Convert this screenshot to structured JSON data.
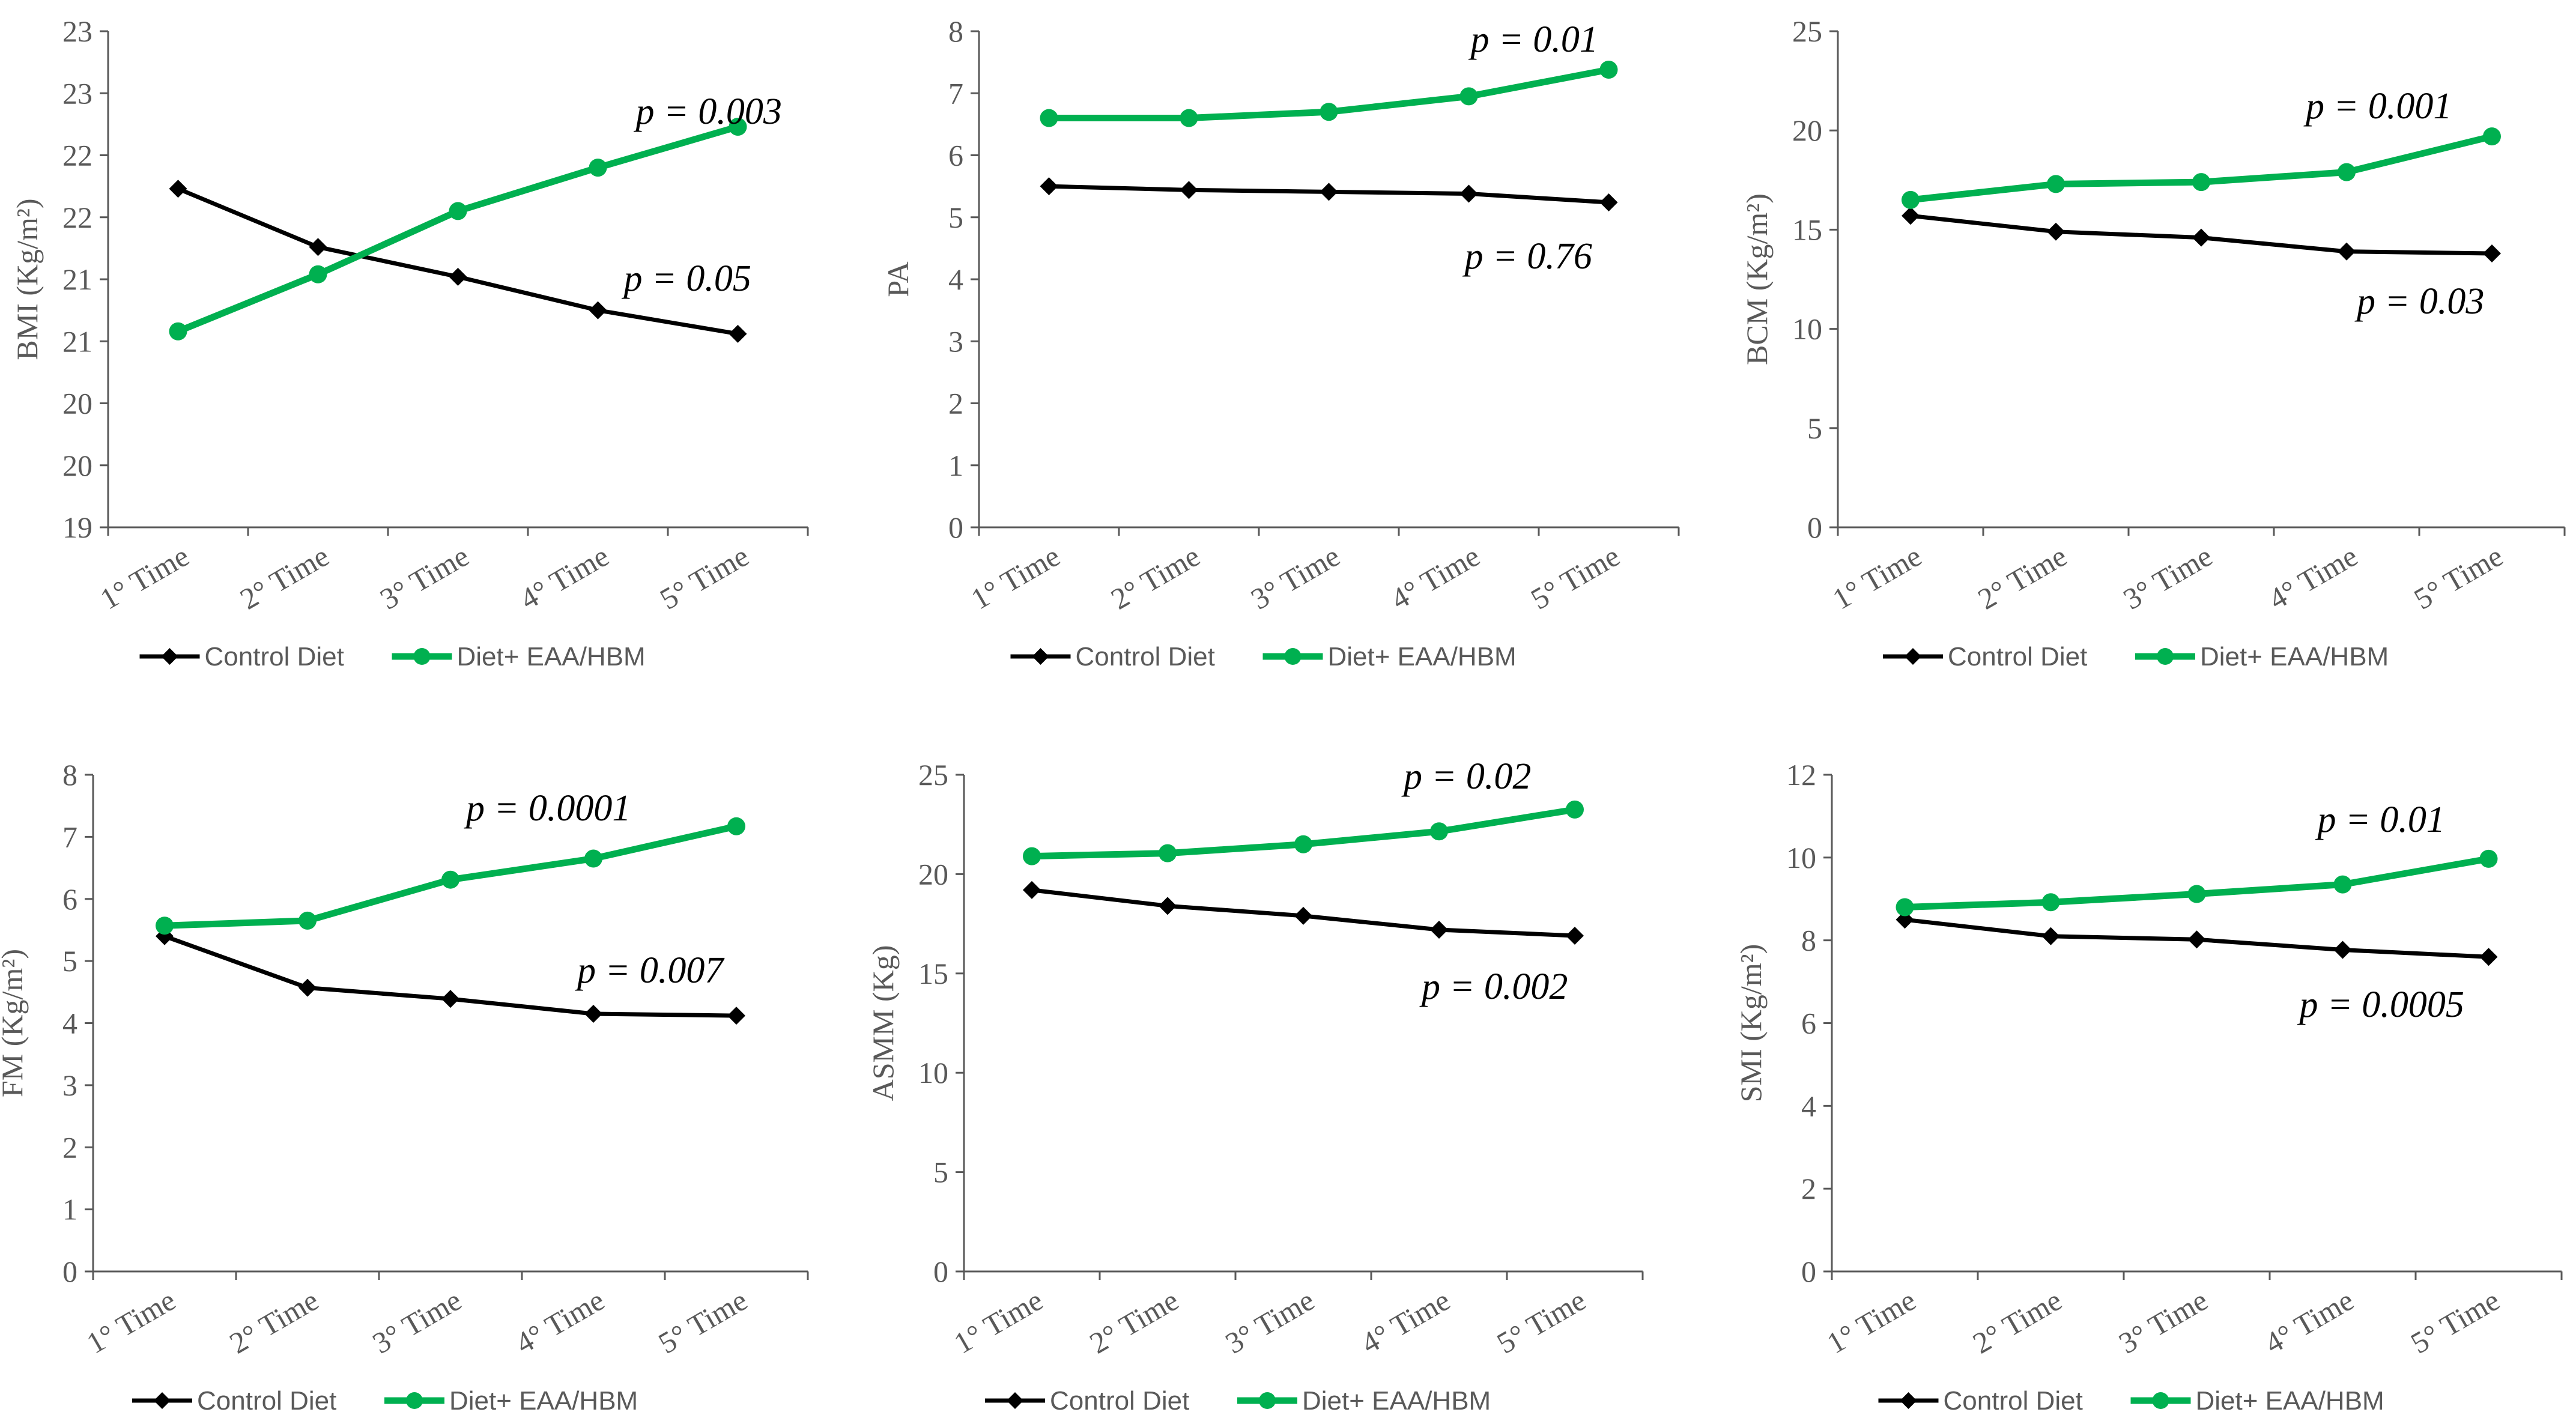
{
  "colors": {
    "control": "#000000",
    "treatment": "#00b050",
    "axis": "#595959"
  },
  "legend": {
    "control_label": "Control Diet",
    "treatment_label": "Diet+ EAA/HBM"
  },
  "chart_data": [
    {
      "id": "bmi",
      "type": "line",
      "ylabel": "BMI (Kg/m²)",
      "categories": [
        "1° Time",
        "2° Time",
        "3° Time",
        "4° Time",
        "5° Time"
      ],
      "yticks": [
        "19",
        "20",
        "20",
        "21",
        "21",
        "22",
        "22",
        "23",
        "23"
      ],
      "ylim": [
        19,
        23
      ],
      "series": [
        {
          "name": "Control Diet",
          "values": [
            21.73,
            21.26,
            21.02,
            20.75,
            20.56
          ]
        },
        {
          "name": "Diet+ EAA/HBM",
          "values": [
            20.58,
            21.04,
            21.55,
            21.9,
            22.23
          ]
        }
      ],
      "annotations": [
        {
          "series": "Diet+ EAA/HBM",
          "text": "p = 0.003"
        },
        {
          "series": "Control Diet",
          "text": "p = 0.05"
        }
      ]
    },
    {
      "id": "pa",
      "type": "line",
      "ylabel": "PA",
      "categories": [
        "1° Time",
        "2° Time",
        "3° Time",
        "4° Time",
        "5° Time"
      ],
      "yticks": [
        "0",
        "1",
        "2",
        "3",
        "4",
        "5",
        "6",
        "7",
        "8"
      ],
      "ylim": [
        0,
        8
      ],
      "series": [
        {
          "name": "Control Diet",
          "values": [
            5.5,
            5.44,
            5.41,
            5.38,
            5.24
          ]
        },
        {
          "name": "Diet+ EAA/HBM",
          "values": [
            6.6,
            6.6,
            6.7,
            6.95,
            7.38
          ]
        }
      ],
      "annotations": [
        {
          "series": "Diet+ EAA/HBM",
          "text": "p = 0.01"
        },
        {
          "series": "Control Diet",
          "text": "p = 0.76"
        }
      ]
    },
    {
      "id": "bcm",
      "type": "line",
      "ylabel": "BCM (Kg/m²)",
      "categories": [
        "1° Time",
        "2° Time",
        "3° Time",
        "4° Time",
        "5° Time"
      ],
      "yticks": [
        "0",
        "5",
        "10",
        "15",
        "20",
        "25"
      ],
      "ylim": [
        0,
        25
      ],
      "series": [
        {
          "name": "Control Diet",
          "values": [
            15.7,
            14.9,
            14.6,
            13.9,
            13.8
          ]
        },
        {
          "name": "Diet+ EAA/HBM",
          "values": [
            16.5,
            17.3,
            17.4,
            17.9,
            19.7
          ]
        }
      ],
      "annotations": [
        {
          "series": "Diet+ EAA/HBM",
          "text": "p = 0.001"
        },
        {
          "series": "Control Diet",
          "text": "p = 0.03"
        }
      ]
    },
    {
      "id": "fm",
      "type": "line",
      "ylabel": "FM (Kg/m²)",
      "categories": [
        "1° Time",
        "2° Time",
        "3° Time",
        "4° Time",
        "5° Time"
      ],
      "yticks": [
        "0",
        "1",
        "2",
        "3",
        "4",
        "5",
        "6",
        "7",
        "8"
      ],
      "ylim": [
        0,
        8
      ],
      "series": [
        {
          "name": "Control Diet",
          "values": [
            5.4,
            4.57,
            4.39,
            4.15,
            4.12
          ]
        },
        {
          "name": "Diet+ EAA/HBM",
          "values": [
            5.57,
            5.65,
            6.31,
            6.65,
            7.17
          ]
        }
      ],
      "annotations": [
        {
          "series": "Diet+ EAA/HBM",
          "text": "p = 0.0001"
        },
        {
          "series": "Control Diet",
          "text": "p = 0.007"
        }
      ]
    },
    {
      "id": "asmm",
      "type": "line",
      "ylabel": "ASMM (Kg)",
      "categories": [
        "1° Time",
        "2° Time",
        "3° Time",
        "4° Time",
        "5° Time"
      ],
      "yticks": [
        "0",
        "5",
        "10",
        "15",
        "20",
        "25"
      ],
      "ylim": [
        0,
        25
      ],
      "series": [
        {
          "name": "Control Diet",
          "values": [
            19.2,
            18.4,
            17.9,
            17.2,
            16.9
          ]
        },
        {
          "name": "Diet+ EAA/HBM",
          "values": [
            20.9,
            21.05,
            21.5,
            22.15,
            23.25
          ]
        }
      ],
      "annotations": [
        {
          "series": "Diet+ EAA/HBM",
          "text": "p = 0.02"
        },
        {
          "series": "Control Diet",
          "text": "p = 0.002"
        }
      ]
    },
    {
      "id": "smi",
      "type": "line",
      "ylabel": "SMI (Kg/m²)",
      "categories": [
        "1° Time",
        "2° Time",
        "3° Time",
        "4° Time",
        "5° Time"
      ],
      "yticks": [
        "0",
        "2",
        "4",
        "6",
        "8",
        "10",
        "12"
      ],
      "ylim": [
        0,
        12
      ],
      "series": [
        {
          "name": "Control Diet",
          "values": [
            8.5,
            8.1,
            8.02,
            7.77,
            7.6
          ]
        },
        {
          "name": "Diet+ EAA/HBM",
          "values": [
            8.8,
            8.92,
            9.12,
            9.35,
            9.97
          ]
        }
      ],
      "annotations": [
        {
          "series": "Diet+ EAA/HBM",
          "text": "p = 0.01"
        },
        {
          "series": "Control Diet",
          "text": "p = 0.0005"
        }
      ]
    }
  ]
}
